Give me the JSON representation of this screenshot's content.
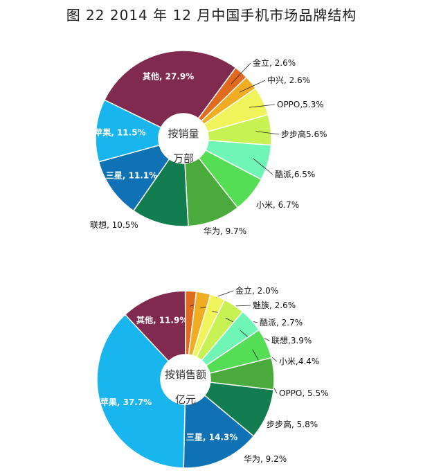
{
  "title": "图  22    2014 年 12 月中国手机市场品牌结构",
  "chart_data": [
    {
      "type": "pie",
      "center_label": "按销量",
      "unit_label": "万部",
      "slices": [
        {
          "name": "其他",
          "value": 27.9,
          "label": "其他, 27.9%",
          "color": "#7f2a4e"
        },
        {
          "name": "金立",
          "value": 2.6,
          "label": "金立, 2.6%",
          "color": "#e06b1f"
        },
        {
          "name": "中兴",
          "value": 2.6,
          "label": "中兴, 2.6%",
          "color": "#f0ac22"
        },
        {
          "name": "OPPO",
          "value": 5.3,
          "label": "OPPO,5.3%",
          "color": "#f1f35a"
        },
        {
          "name": "步步高",
          "value": 5.6,
          "label": "步步高5.6%",
          "color": "#c8f253"
        },
        {
          "name": "酷派",
          "value": 6.5,
          "label": "酷派,6.5%",
          "color": "#6ff5b6"
        },
        {
          "name": "小米",
          "value": 6.7,
          "label": "小米, 6.7%",
          "color": "#55dd55"
        },
        {
          "name": "华为",
          "value": 9.7,
          "label": "华为, 9.7%",
          "color": "#4aaa3c"
        },
        {
          "name": "联想",
          "value": 10.5,
          "label": "联想, 10.5%",
          "color": "#127d4e"
        },
        {
          "name": "三星",
          "value": 11.1,
          "label": "三星, 11.1%",
          "color": "#0e72b5"
        },
        {
          "name": "苹果",
          "value": 11.5,
          "label": "苹果, 11.5%",
          "color": "#19b5ee"
        }
      ]
    },
    {
      "type": "pie",
      "center_label": "按销售额",
      "unit_label": "亿元",
      "slices": [
        {
          "name": "其他",
          "value": 11.9,
          "label": "其他, 11.9%",
          "color": "#7f2a4e"
        },
        {
          "name": "金立",
          "value": 2.0,
          "label": "金立, 2.0%",
          "color": "#e06b1f"
        },
        {
          "name": "魅族",
          "value": 2.6,
          "label": "魅族, 2.6%",
          "color": "#f0ac22"
        },
        {
          "name": "酷派",
          "value": 2.7,
          "label": "酷派, 2.7%",
          "color": "#f1f35a"
        },
        {
          "name": "联想",
          "value": 3.9,
          "label": "联想,3.9%",
          "color": "#c8f253"
        },
        {
          "name": "小米",
          "value": 4.4,
          "label": "小米,4.4%",
          "color": "#6ff5b6"
        },
        {
          "name": "OPPO",
          "value": 5.5,
          "label": "OPPO, 5.5%",
          "color": "#55dd55"
        },
        {
          "name": "步步高",
          "value": 5.8,
          "label": "步步高, 5.8%",
          "color": "#4aaa3c"
        },
        {
          "name": "华为",
          "value": 9.2,
          "label": "华为, 9.2%",
          "color": "#127d4e"
        },
        {
          "name": "三星",
          "value": 14.3,
          "label": "三星, 14.3%",
          "color": "#0e72b5"
        },
        {
          "name": "苹果",
          "value": 37.7,
          "label": "苹果, 37.7%",
          "color": "#19b5ee"
        }
      ]
    }
  ]
}
